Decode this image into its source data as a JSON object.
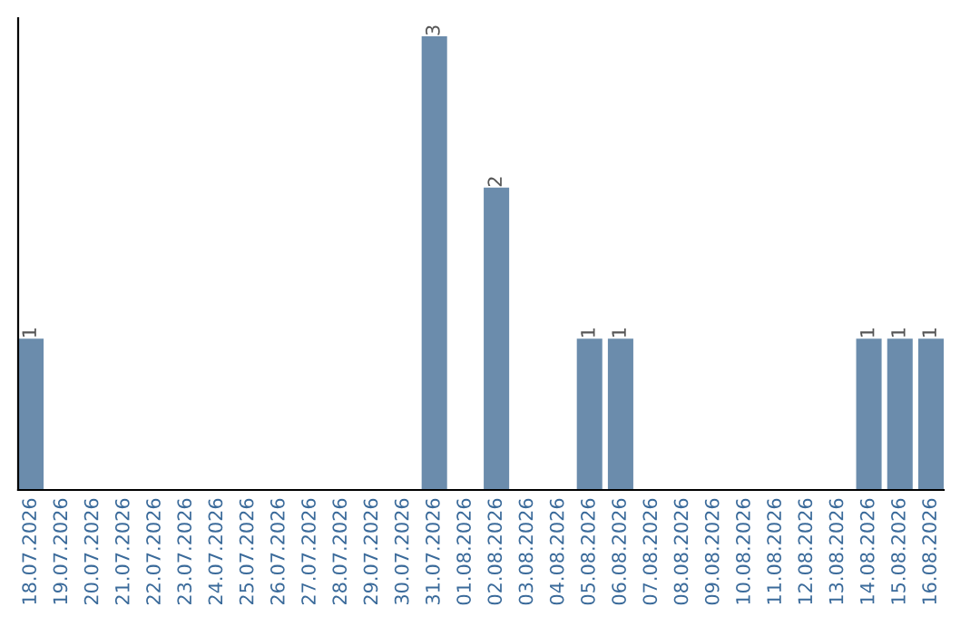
{
  "chart_data": {
    "type": "bar",
    "categories": [
      "18.07.2026",
      "19.07.2026",
      "20.07.2026",
      "21.07.2026",
      "22.07.2026",
      "23.07.2026",
      "24.07.2026",
      "25.07.2026",
      "26.07.2026",
      "27.07.2026",
      "28.07.2026",
      "29.07.2026",
      "30.07.2026",
      "31.07.2026",
      "01.08.2026",
      "02.08.2026",
      "03.08.2026",
      "04.08.2026",
      "05.08.2026",
      "06.08.2026",
      "07.08.2026",
      "08.08.2026",
      "09.08.2026",
      "10.08.2026",
      "11.08.2026",
      "12.08.2026",
      "13.08.2026",
      "14.08.2026",
      "15.08.2026",
      "16.08.2026"
    ],
    "values": [
      1,
      0,
      0,
      0,
      0,
      0,
      0,
      0,
      0,
      0,
      0,
      0,
      0,
      3,
      0,
      2,
      0,
      0,
      1,
      1,
      0,
      0,
      0,
      0,
      0,
      0,
      0,
      1,
      1,
      1
    ],
    "value_labels": [
      "1",
      null,
      null,
      null,
      null,
      null,
      null,
      null,
      null,
      null,
      null,
      null,
      null,
      "3",
      null,
      "2",
      null,
      null,
      "1",
      "1",
      null,
      null,
      null,
      null,
      null,
      null,
      null,
      "1",
      "1",
      "1"
    ],
    "color": "#6b8cac",
    "grid": false,
    "legend": false
  }
}
